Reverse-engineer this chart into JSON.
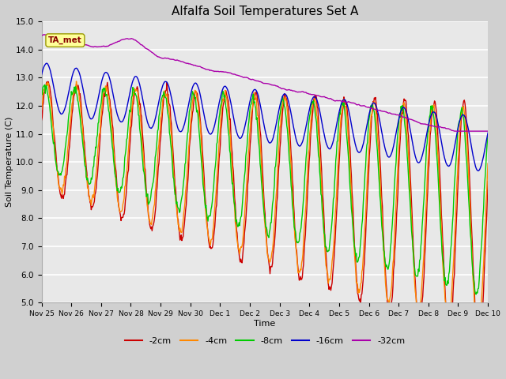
{
  "title": "Alfalfa Soil Temperatures Set A",
  "xlabel": "Time",
  "ylabel": "Soil Temperature (C)",
  "ylim": [
    5.0,
    15.0
  ],
  "yticks": [
    5.0,
    6.0,
    7.0,
    8.0,
    9.0,
    10.0,
    11.0,
    12.0,
    13.0,
    14.0,
    15.0
  ],
  "xtick_labels": [
    "Nov 25",
    "Nov 26",
    "Nov 27",
    "Nov 28",
    "Nov 29",
    "Nov 30",
    "Dec 1",
    "Dec 2",
    "Dec 3",
    "Dec 4",
    "Dec 5",
    "Dec 6",
    "Dec 7",
    "Dec 8",
    "Dec 9",
    "Dec 10"
  ],
  "colors": {
    "-2cm": "#cc0000",
    "-4cm": "#ff8800",
    "-8cm": "#00cc00",
    "-16cm": "#0000cc",
    "-32cm": "#aa00aa"
  },
  "legend_labels": [
    "-2cm",
    "-4cm",
    "-8cm",
    "-16cm",
    "-32cm"
  ],
  "plot_background": "#e8e8e8",
  "fig_background": "#d0d0d0",
  "ta_met_box_color": "#ffff99",
  "ta_met_text_color": "#880000",
  "n_points": 720
}
